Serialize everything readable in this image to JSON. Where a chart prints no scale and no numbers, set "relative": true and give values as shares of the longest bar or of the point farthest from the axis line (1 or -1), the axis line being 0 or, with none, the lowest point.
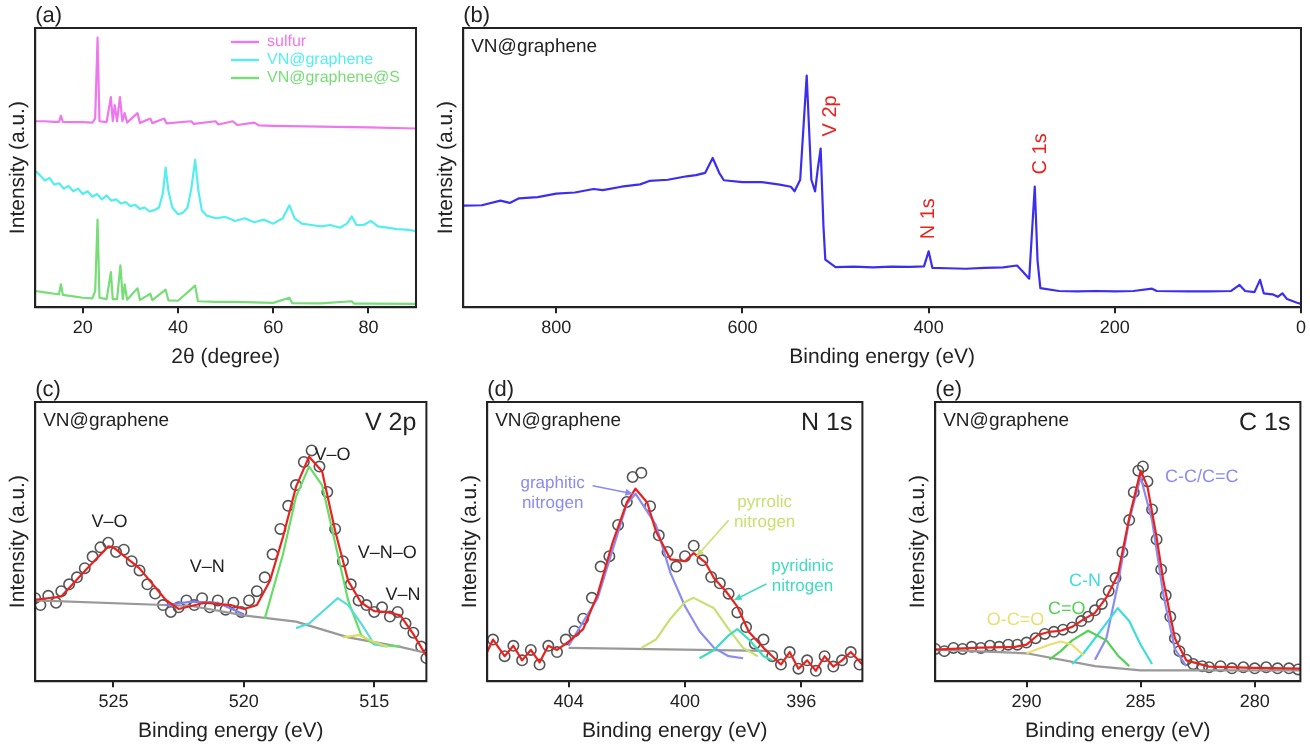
{
  "chart_data": [
    {
      "type": "line",
      "title": "(a)",
      "xlabel": "2θ (degree)",
      "ylabel": "Intensity (a.u.)",
      "relative": true,
      "xlim": [
        10,
        90
      ],
      "xticks": [
        20,
        40,
        60,
        80
      ],
      "legend": "top right",
      "marker": "none",
      "grid": false,
      "series": [
        {
          "name": "sulfur",
          "color": "#ee77ee",
          "x": [
            10,
            12,
            14,
            15,
            15.4,
            15.8,
            18,
            20,
            22,
            22.6,
            23.1,
            23.5,
            25,
            25.9,
            26.3,
            26.7,
            27.2,
            27.8,
            28.3,
            28.8,
            29.3,
            31.5,
            32,
            34.2,
            34.6,
            37.1,
            37.6,
            42.8,
            43.3,
            47.9,
            48.5,
            51.5,
            52.5,
            56,
            57,
            60,
            70,
            80,
            90
          ],
          "values": [
            0.69,
            0.69,
            0.688,
            0.688,
            0.71,
            0.688,
            0.687,
            0.687,
            0.685,
            0.7,
            1,
            0.69,
            0.687,
            0.78,
            0.69,
            0.75,
            0.69,
            0.78,
            0.69,
            0.72,
            0.685,
            0.72,
            0.684,
            0.7,
            0.683,
            0.7,
            0.682,
            0.69,
            0.68,
            0.69,
            0.678,
            0.69,
            0.676,
            0.685,
            0.675,
            0.673,
            0.67,
            0.667,
            0.663
          ]
        },
        {
          "name": "VN@graphene",
          "color": "#55eeee",
          "x": [
            10,
            11,
            12,
            13,
            14,
            15,
            16,
            17,
            18,
            19,
            20,
            21,
            22,
            23,
            24,
            25,
            26,
            27,
            28,
            29,
            30,
            31,
            32,
            33,
            34,
            35,
            36,
            36.8,
            37.4,
            38,
            38.8,
            40,
            41,
            42,
            42.8,
            43.6,
            44.3,
            45,
            46,
            48,
            50,
            52,
            54,
            56,
            58,
            60,
            62,
            63.4,
            64.5,
            66,
            68,
            70,
            72,
            74,
            75.5,
            76.5,
            77.5,
            79,
            80.5,
            82,
            84,
            86,
            88,
            90
          ],
          "values": [
            0.506,
            0.49,
            0.47,
            0.48,
            0.455,
            0.46,
            0.44,
            0.45,
            0.43,
            0.44,
            0.42,
            0.43,
            0.41,
            0.42,
            0.4,
            0.415,
            0.395,
            0.4,
            0.385,
            0.39,
            0.375,
            0.38,
            0.365,
            0.37,
            0.355,
            0.36,
            0.37,
            0.42,
            0.518,
            0.43,
            0.37,
            0.345,
            0.35,
            0.37,
            0.44,
            0.547,
            0.43,
            0.36,
            0.34,
            0.33,
            0.335,
            0.32,
            0.33,
            0.315,
            0.325,
            0.31,
            0.33,
            0.378,
            0.33,
            0.31,
            0.305,
            0.3,
            0.305,
            0.295,
            0.31,
            0.337,
            0.305,
            0.305,
            0.32,
            0.3,
            0.295,
            0.29,
            0.288,
            0.282
          ]
        },
        {
          "name": "VN@graphene@S",
          "color": "#77dd77",
          "x": [
            10,
            12,
            14,
            15,
            15.4,
            15.8,
            18,
            20,
            22,
            22.6,
            23.1,
            23.5,
            25,
            25.9,
            26.3,
            27.2,
            27.9,
            28.4,
            28.8,
            29.3,
            31.5,
            32,
            34.2,
            34.6,
            37.4,
            38,
            40,
            43.6,
            44.2,
            48,
            52,
            56,
            60,
            63.4,
            64,
            70,
            76.5,
            77,
            80,
            90
          ],
          "values": [
            0.06,
            0.055,
            0.05,
            0.048,
            0.085,
            0.046,
            0.04,
            0.035,
            0.033,
            0.06,
            0.325,
            0.035,
            0.03,
            0.13,
            0.03,
            0.03,
            0.155,
            0.03,
            0.085,
            0.028,
            0.07,
            0.027,
            0.05,
            0.026,
            0.065,
            0.025,
            0.024,
            0.08,
            0.022,
            0.02,
            0.02,
            0.018,
            0.016,
            0.035,
            0.015,
            0.014,
            0.022,
            0.013,
            0.013,
            0.012
          ]
        }
      ]
    },
    {
      "type": "line",
      "title": "(b)",
      "subtitle": "VN@graphene",
      "xlabel": "Binding energy (eV)",
      "ylabel": "Intensity (a.u.)",
      "relative": true,
      "xlim": [
        900,
        0
      ],
      "xticks": [
        800,
        600,
        400,
        200,
        0
      ],
      "marker": "none",
      "grid": false,
      "annotations": [
        {
          "text": "V 2p",
          "x": 516,
          "y": 0.685
        },
        {
          "text": "N 1s",
          "x": 400,
          "y": 0.241
        },
        {
          "text": "C 1s",
          "x": 286,
          "y": 0.521
        }
      ],
      "series": [
        {
          "color": "#3c2ef0",
          "x": [
            900,
            880,
            860,
            850,
            840,
            820,
            800,
            780,
            760,
            750,
            730,
            710,
            700,
            680,
            660,
            650,
            640,
            632,
            625,
            620,
            600,
            580,
            560,
            548,
            544,
            538,
            531,
            526,
            522,
            519,
            516,
            513,
            511,
            500,
            480,
            460,
            440,
            420,
            405,
            400,
            396,
            380,
            360,
            340,
            320,
            305,
            298,
            292,
            286,
            283,
            280,
            260,
            240,
            220,
            200,
            180,
            160,
            155,
            120,
            100,
            75,
            66,
            60,
            50,
            44,
            40,
            30,
            25,
            20,
            15,
            5,
            0
          ],
          "values": [
            0.438,
            0.44,
            0.46,
            0.45,
            0.47,
            0.475,
            0.49,
            0.495,
            0.51,
            0.505,
            0.52,
            0.53,
            0.545,
            0.55,
            0.565,
            0.57,
            0.58,
            0.644,
            0.58,
            0.548,
            0.54,
            0.54,
            0.529,
            0.52,
            0.5,
            0.55,
            1,
            0.55,
            0.5,
            0.6,
            0.685,
            0.35,
            0.205,
            0.173,
            0.175,
            0.172,
            0.175,
            0.174,
            0.176,
            0.241,
            0.17,
            0.168,
            0.166,
            0.17,
            0.172,
            0.18,
            0.15,
            0.123,
            0.521,
            0.2,
            0.082,
            0.07,
            0.068,
            0.07,
            0.068,
            0.07,
            0.08,
            0.07,
            0.068,
            0.068,
            0.07,
            0.096,
            0.07,
            0.065,
            0.118,
            0.06,
            0.055,
            0.045,
            0.06,
            0.035,
            0.02,
            0.014
          ]
        }
      ]
    },
    {
      "type": "line",
      "title": "(c)",
      "subtitle": "VN@graphene",
      "xlabel": "Binding energy (eV)",
      "ylabel": "Intensity (a.u.)",
      "relative": true,
      "xlim": [
        528,
        513
      ],
      "xticks": [
        525,
        520,
        515
      ],
      "marker": "none",
      "grid": false,
      "annotations": [
        "V 2p",
        "V–O",
        "V–N",
        "V–O",
        "V–N–O",
        "V–N"
      ],
      "series": [
        {
          "type": "scatter",
          "marker": "circle",
          "color": "#555555",
          "x": [
            528,
            527.8,
            527.5,
            527.2,
            527,
            526.7,
            526.4,
            526.1,
            525.8,
            525.5,
            525.2,
            524.9,
            524.6,
            524.3,
            524,
            523.7,
            523.4,
            523.1,
            522.8,
            522.5,
            522.2,
            521.9,
            521.6,
            521.3,
            521,
            520.7,
            520.4,
            520.1,
            519.8,
            519.5,
            519.2,
            518.9,
            518.6,
            518.3,
            518,
            517.7,
            517.4,
            517.1,
            516.8,
            516.5,
            516.2,
            515.9,
            515.6,
            515.3,
            515,
            514.7,
            514.4,
            514.1,
            513.8,
            513.5,
            513.2,
            513
          ],
          "values": [
            0.36,
            0.33,
            0.37,
            0.34,
            0.39,
            0.42,
            0.45,
            0.49,
            0.54,
            0.58,
            0.6,
            0.56,
            0.57,
            0.52,
            0.48,
            0.42,
            0.38,
            0.33,
            0.3,
            0.32,
            0.35,
            0.33,
            0.36,
            0.32,
            0.35,
            0.31,
            0.34,
            0.3,
            0.35,
            0.39,
            0.45,
            0.55,
            0.66,
            0.76,
            0.85,
            0.95,
            1,
            0.93,
            0.82,
            0.66,
            0.52,
            0.42,
            0.35,
            0.33,
            0.3,
            0.32,
            0.28,
            0.3,
            0.25,
            0.21,
            0.15,
            0.1
          ]
        },
        {
          "type": "line",
          "color": "#999999",
          "x": [
            528,
            522,
            520,
            518,
            516,
            514,
            513
          ],
          "values": [
            0.35,
            0.326,
            0.285,
            0.258,
            0.19,
            0.149,
            0.122
          ]
        },
        {
          "type": "line",
          "color": "#8080f0",
          "x": [
            523,
            522,
            521,
            520
          ],
          "values": [
            0.33,
            0.345,
            0.34,
            0.29
          ]
        },
        {
          "type": "line",
          "color": "#66dd66",
          "x": [
            519.2,
            518.5,
            518,
            517.5,
            517,
            516.5,
            516,
            515.5,
            515,
            514
          ],
          "values": [
            0.27,
            0.55,
            0.8,
            0.93,
            0.85,
            0.6,
            0.35,
            0.2,
            0.16,
            0.15
          ]
        },
        {
          "type": "line",
          "color": "#55dddd",
          "x": [
            518,
            517.5,
            517,
            516.4,
            516,
            515.5,
            515,
            514.5
          ],
          "values": [
            0.23,
            0.25,
            0.3,
            0.36,
            0.33,
            0.25,
            0.16,
            0.15
          ]
        },
        {
          "type": "line",
          "color": "#dddd66",
          "x": [
            516.2,
            515.6,
            515,
            514.5
          ],
          "values": [
            0.19,
            0.2,
            0.17,
            0.15
          ]
        },
        {
          "type": "line",
          "color": "#e8231f",
          "x": [
            528,
            527,
            526,
            525.2,
            525,
            524,
            523,
            522.5,
            521.5,
            520.5,
            520,
            519.5,
            519,
            518.5,
            518,
            517.5,
            517,
            516.5,
            516,
            515.5,
            515,
            514.5,
            514,
            513.5,
            513
          ],
          "values": [
            0.353,
            0.367,
            0.489,
            0.584,
            0.58,
            0.489,
            0.353,
            0.313,
            0.34,
            0.33,
            0.313,
            0.33,
            0.435,
            0.625,
            0.842,
            0.973,
            0.91,
            0.652,
            0.435,
            0.34,
            0.304,
            0.299,
            0.285,
            0.204,
            0.109
          ]
        }
      ]
    },
    {
      "type": "line",
      "title": "(d)",
      "subtitle": "VN@graphene",
      "xlabel": "Binding energy (eV)",
      "ylabel": "Intensity (a.u.)",
      "relative": true,
      "xlim": [
        406.8,
        393.9
      ],
      "xticks": [
        404,
        400,
        396
      ],
      "marker": "none",
      "grid": false,
      "annotations": [
        "N 1s",
        {
          "text": "graphitic nitrogen",
          "x": 401.8,
          "y": 0.9
        },
        {
          "text": "pyrrolic nitrogen",
          "x": 399.6,
          "y": 0.6
        },
        {
          "text": "pyridinic nitrogen",
          "x": 398.3,
          "y": 0.39
        }
      ],
      "series": [
        {
          "type": "scatter",
          "marker": "circle",
          "color": "#555555",
          "x": [
            406.6,
            406.2,
            405.9,
            405.6,
            405.3,
            405,
            404.7,
            404.4,
            404.1,
            403.8,
            403.5,
            403.2,
            402.9,
            402.6,
            402.3,
            402,
            401.8,
            401.5,
            401.2,
            400.9,
            400.6,
            400.3,
            400,
            399.7,
            399.4,
            399.1,
            398.8,
            398.5,
            398.2,
            397.9,
            397.6,
            397.3,
            397,
            396.7,
            396.4,
            396.1,
            395.8,
            395.5,
            395.2,
            394.9,
            394.6,
            394.3,
            394
          ],
          "values": [
            0.2,
            0.12,
            0.17,
            0.1,
            0.15,
            0.08,
            0.17,
            0.14,
            0.2,
            0.24,
            0.3,
            0.4,
            0.55,
            0.6,
            0.75,
            0.86,
            0.98,
            1,
            0.84,
            0.7,
            0.62,
            0.55,
            0.6,
            0.65,
            0.58,
            0.5,
            0.47,
            0.42,
            0.33,
            0.26,
            0.18,
            0.2,
            0.12,
            0.08,
            0.14,
            0.06,
            0.1,
            0.05,
            0.12,
            0.07,
            0.1,
            0.14,
            0.08
          ]
        },
        {
          "type": "line",
          "color": "#999999",
          "x": [
            404,
            397
          ],
          "values": [
            0.16,
            0.145
          ]
        },
        {
          "type": "line",
          "color": "#8b8bf0",
          "x": [
            404,
            403,
            402,
            401.7,
            401,
            400.5,
            400,
            399.5,
            399,
            398.5,
            398
          ],
          "values": [
            0.17,
            0.4,
            0.85,
            0.9,
            0.75,
            0.52,
            0.36,
            0.24,
            0.16,
            0.12,
            0.11
          ]
        },
        {
          "type": "line",
          "color": "#c8e070",
          "x": [
            401.5,
            401,
            400.5,
            400,
            399.7,
            399,
            398.5,
            398,
            397.5
          ],
          "values": [
            0.16,
            0.2,
            0.3,
            0.38,
            0.4,
            0.35,
            0.25,
            0.16,
            0.12
          ]
        },
        {
          "type": "line",
          "color": "#40dcc0",
          "x": [
            399.5,
            399,
            398.5,
            398.2,
            397.8,
            397.3,
            397
          ],
          "values": [
            0.11,
            0.15,
            0.22,
            0.25,
            0.2,
            0.12,
            0.1
          ]
        },
        {
          "type": "line",
          "color": "#e8231f",
          "x": [
            406.8,
            406.6,
            406.2,
            405.9,
            405.6,
            405.3,
            405,
            404.7,
            404.4,
            404,
            403.5,
            403,
            402.5,
            402,
            401.7,
            401.3,
            401,
            400.5,
            400,
            399.7,
            399.3,
            399,
            398.6,
            398.2,
            397.8,
            397.3,
            397,
            396.7,
            396.4,
            396.1,
            395.8,
            395.5,
            395.2,
            394.9,
            394.6,
            394.3,
            393.9
          ],
          "values": [
            0.14,
            0.2,
            0.12,
            0.17,
            0.1,
            0.15,
            0.09,
            0.17,
            0.15,
            0.19,
            0.25,
            0.418,
            0.66,
            0.858,
            0.924,
            0.858,
            0.72,
            0.585,
            0.576,
            0.615,
            0.57,
            0.494,
            0.433,
            0.358,
            0.236,
            0.16,
            0.12,
            0.08,
            0.14,
            0.06,
            0.1,
            0.05,
            0.12,
            0.07,
            0.1,
            0.14,
            0.08
          ]
        }
      ]
    },
    {
      "type": "line",
      "title": "(e)",
      "subtitle": "VN@graphene",
      "xlabel": "Binding energy (eV)",
      "ylabel": "Intensity (a.u.)",
      "relative": true,
      "xlim": [
        294,
        278
      ],
      "xticks": [
        290,
        285,
        280
      ],
      "marker": "none",
      "grid": false,
      "annotations": [
        "C 1s",
        "C-C/C=C",
        "C-N",
        "C=O",
        "O-C=O"
      ],
      "series": [
        {
          "type": "scatter",
          "marker": "circle",
          "color": "#555555",
          "x": [
            294,
            293.6,
            293.2,
            292.8,
            292.4,
            292,
            291.6,
            291.2,
            290.8,
            290.4,
            290,
            289.6,
            289.2,
            288.8,
            288.4,
            288,
            287.6,
            287.3,
            287,
            286.7,
            286.4,
            286.1,
            285.8,
            285.5,
            285.3,
            285.1,
            284.9,
            284.7,
            284.5,
            284.3,
            284.1,
            283.9,
            283.7,
            283.5,
            283.3,
            283,
            282.7,
            282.3,
            282,
            281.5,
            281,
            280.5,
            280,
            279.5,
            279,
            278.5,
            278.1
          ],
          "values": [
            0.15,
            0.14,
            0.155,
            0.15,
            0.16,
            0.155,
            0.165,
            0.16,
            0.17,
            0.17,
            0.18,
            0.2,
            0.22,
            0.23,
            0.24,
            0.25,
            0.28,
            0.3,
            0.33,
            0.36,
            0.42,
            0.48,
            0.6,
            0.75,
            0.88,
            0.98,
            1,
            0.93,
            0.8,
            0.66,
            0.52,
            0.4,
            0.3,
            0.2,
            0.14,
            0.1,
            0.08,
            0.07,
            0.065,
            0.07,
            0.06,
            0.065,
            0.06,
            0.065,
            0.06,
            0.06,
            0.055
          ]
        },
        {
          "type": "line",
          "color": "#999999",
          "x": [
            294,
            290,
            287,
            285,
            278
          ],
          "values": [
            0.147,
            0.13,
            0.07,
            0.05,
            0.05
          ]
        },
        {
          "type": "line",
          "color": "#8b8bf0",
          "x": [
            287,
            286.5,
            286,
            285.5,
            285,
            284.5,
            284,
            283.5,
            283
          ],
          "values": [
            0.1,
            0.2,
            0.45,
            0.75,
            0.95,
            0.75,
            0.4,
            0.15,
            0.07
          ]
        },
        {
          "type": "line",
          "color": "#40dcdc",
          "x": [
            288,
            287.5,
            287,
            286,
            285.5,
            285,
            284.5
          ],
          "values": [
            0.08,
            0.13,
            0.2,
            0.34,
            0.28,
            0.17,
            0.08
          ]
        },
        {
          "type": "line",
          "color": "#55d055",
          "x": [
            289,
            288.5,
            288,
            287.3,
            286.5,
            286,
            285.5
          ],
          "values": [
            0.1,
            0.14,
            0.19,
            0.235,
            0.19,
            0.12,
            0.07
          ]
        },
        {
          "type": "line",
          "color": "#e8e070",
          "x": [
            290,
            289,
            288.5,
            288,
            287.5
          ],
          "values": [
            0.13,
            0.17,
            0.185,
            0.17,
            0.12
          ]
        },
        {
          "type": "line",
          "color": "#e8231f",
          "x": [
            294,
            292,
            290.5,
            290,
            289.5,
            289,
            288.5,
            288,
            287.5,
            287,
            286.5,
            286,
            285.5,
            285,
            284.7,
            284.3,
            284,
            283.5,
            283,
            282,
            280,
            278
          ],
          "values": [
            0.147,
            0.156,
            0.16,
            0.17,
            0.215,
            0.23,
            0.235,
            0.253,
            0.288,
            0.318,
            0.39,
            0.494,
            0.76,
            0.98,
            0.906,
            0.67,
            0.465,
            0.2,
            0.097,
            0.068,
            0.062,
            0.059
          ]
        }
      ]
    }
  ]
}
